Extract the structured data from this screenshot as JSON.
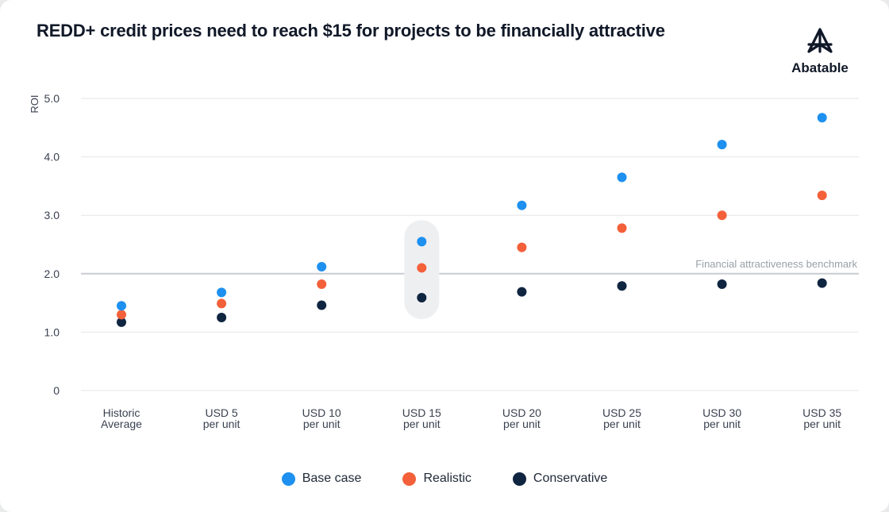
{
  "page": {
    "title": "REDD+ credit prices need to reach $15 for projects to be financially attractive",
    "logo_text": "Abatable"
  },
  "colors": {
    "base": "#1e90f0",
    "realistic": "#f4603a",
    "conservative": "#0f2540",
    "grid": "#e4e6ea",
    "benchmark": "#c9ccd1",
    "highlight": "#eeeff1"
  },
  "chart_data": {
    "type": "scatter",
    "title": "REDD+ credit prices need to reach $15 for projects to be financially attractive",
    "ylabel": "ROI",
    "xlabel": "",
    "ylim": [
      0,
      5
    ],
    "yticks": [
      {
        "value": 0,
        "label": "0"
      },
      {
        "value": 1,
        "label": "1.0"
      },
      {
        "value": 2,
        "label": "2.0"
      },
      {
        "value": 3,
        "label": "3.0"
      },
      {
        "value": 4,
        "label": "4.0"
      },
      {
        "value": 5,
        "label": "5.0"
      }
    ],
    "categories": [
      [
        "Historic",
        "Average"
      ],
      [
        "USD 5",
        "per unit"
      ],
      [
        "USD 10",
        "per unit"
      ],
      [
        "USD 15",
        "per unit"
      ],
      [
        "USD 20",
        "per unit"
      ],
      [
        "USD 25",
        "per unit"
      ],
      [
        "USD 30",
        "per unit"
      ],
      [
        "USD 35",
        "per unit"
      ]
    ],
    "series": [
      {
        "name": "Base case",
        "key": "base",
        "values": [
          1.45,
          1.68,
          2.12,
          2.55,
          3.17,
          3.65,
          4.21,
          4.67
        ]
      },
      {
        "name": "Realistic",
        "key": "realistic",
        "values": [
          1.3,
          1.49,
          1.82,
          2.1,
          2.45,
          2.78,
          3.0,
          3.34
        ]
      },
      {
        "name": "Conservative",
        "key": "conservative",
        "values": [
          1.17,
          1.25,
          1.46,
          1.59,
          1.69,
          1.79,
          1.82,
          1.84
        ]
      }
    ],
    "benchmark": {
      "value": 2.0,
      "label": "Financial attractiveness benchmark"
    },
    "highlight_category_index": 3,
    "legend_position": "bottom-center",
    "grid": true
  }
}
